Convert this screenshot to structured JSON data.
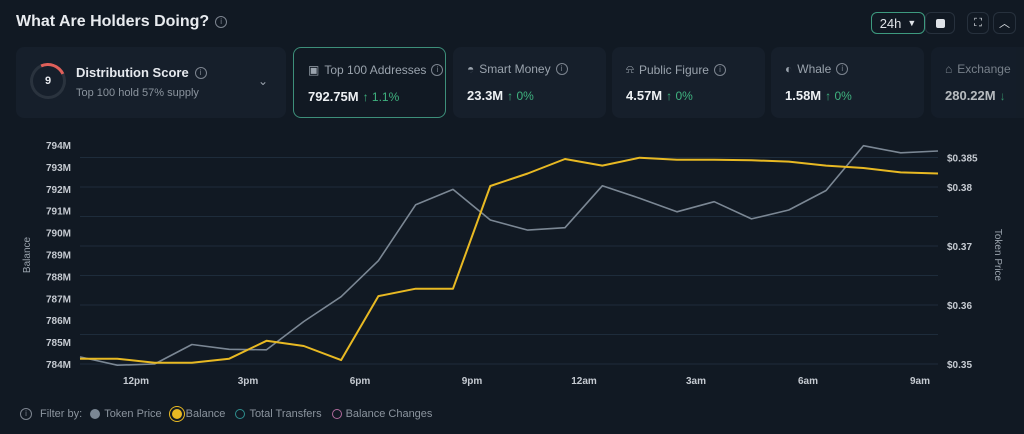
{
  "header": {
    "title": "What Are Holders Doing?",
    "range": "24h"
  },
  "distribution": {
    "score": "9",
    "title": "Distribution Score",
    "subtitle": "Top 100 hold 57% supply",
    "score_fraction": 0.09
  },
  "cards": [
    {
      "label": "Top 100 Addresses",
      "value": "792.75M",
      "change": "↑ 1.1%",
      "icon": "wallet-icon",
      "selected": true
    },
    {
      "label": "Smart Money",
      "value": "23.3M",
      "change": "↑ 0%",
      "icon": "sunglasses-icon"
    },
    {
      "label": "Public Figure",
      "value": "4.57M",
      "change": "↑ 0%",
      "icon": "broadcast-icon"
    },
    {
      "label": "Whale",
      "value": "1.58M",
      "change": "↑ 0%",
      "icon": "whale-icon"
    },
    {
      "label": "Exchange",
      "value": "280.22M",
      "change": "↓",
      "icon": "bank-icon"
    }
  ],
  "legend": {
    "filter_label": "Filter by:",
    "items": [
      {
        "name": "Token Price",
        "color": "#7b8794",
        "active": true
      },
      {
        "name": "Balance",
        "color": "#e8b923",
        "active": true
      },
      {
        "name": "Total Transfers",
        "color": "#2f8f8f",
        "active": false
      },
      {
        "name": "Balance Changes",
        "color": "#b06a9c",
        "active": false
      }
    ]
  },
  "chart_data": {
    "type": "line",
    "xlabel": "",
    "ylabel": "Balance",
    "y2label": "Token Price",
    "x": [
      "10:30am",
      "11:30am",
      "12:30pm",
      "1:30pm",
      "2:30pm",
      "3:30pm",
      "4:30pm",
      "5:30pm",
      "6:30pm",
      "7:30pm",
      "8:30pm",
      "9:30pm",
      "10:30pm",
      "11:30pm",
      "12:30am",
      "1:30am",
      "2:30am",
      "3:30am",
      "4:30am",
      "5:30am",
      "6:30am",
      "7:30am",
      "8:30am",
      "9:30am"
    ],
    "x_ticks": [
      "12pm",
      "3pm",
      "6pm",
      "9pm",
      "12am",
      "3am",
      "6am",
      "9am"
    ],
    "y_ticks": [
      "784M",
      "785M",
      "786M",
      "787M",
      "788M",
      "789M",
      "790M",
      "791M",
      "792M",
      "793M",
      "794M"
    ],
    "y2_ticks": [
      "$0.35",
      "$0.36",
      "$0.37",
      "$0.38",
      "$0.385"
    ],
    "ylim": [
      784,
      794
    ],
    "y2lim": [
      0.35,
      0.385
    ],
    "grid": true,
    "legend": "bottom-left",
    "series": [
      {
        "name": "Balance",
        "axis": "left",
        "unit": "M",
        "color": "#e8b923",
        "values": [
          784.24,
          784.24,
          784.06,
          784.06,
          784.24,
          785.06,
          784.82,
          784.18,
          787.1,
          787.44,
          787.44,
          792.13,
          792.7,
          793.36,
          793.06,
          793.42,
          793.33,
          793.33,
          793.3,
          793.24,
          793.06,
          792.95,
          792.75,
          792.7
        ]
      },
      {
        "name": "Token Price",
        "axis": "right",
        "unit": "$",
        "color": "#7b8794",
        "values": [
          0.3512,
          0.3498,
          0.35,
          0.3533,
          0.3525,
          0.3524,
          0.3572,
          0.3614,
          0.3675,
          0.377,
          0.3796,
          0.3744,
          0.3727,
          0.3731,
          0.3802,
          0.3781,
          0.3758,
          0.3775,
          0.3746,
          0.3761,
          0.3794,
          0.387,
          0.3858,
          0.3861
        ]
      }
    ]
  }
}
